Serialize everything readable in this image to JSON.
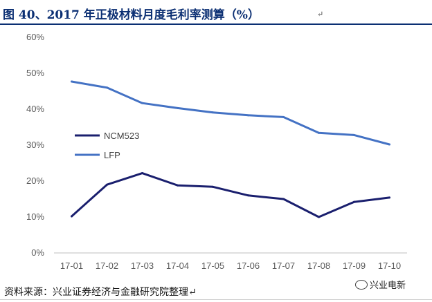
{
  "header": {
    "title": "图 40、2017 年正极材料月度毛利率测算（%）",
    "mark": "↵"
  },
  "footer": {
    "source": "资料来源：兴业证券经济与金融研究院整理↵",
    "watermark": "兴业电新"
  },
  "chart_data": {
    "type": "line",
    "title": "",
    "xlabel": "",
    "ylabel": "",
    "categories": [
      "17-01",
      "17-02",
      "17-03",
      "17-04",
      "17-05",
      "17-06",
      "17-07",
      "17-08",
      "17-09",
      "17-10"
    ],
    "ylim": [
      0,
      60
    ],
    "yticks": [
      "0%",
      "10%",
      "20%",
      "30%",
      "40%",
      "50%",
      "60%"
    ],
    "grid": false,
    "legend_position": "left-middle",
    "series": [
      {
        "name": "NCM523",
        "color": "#1a1f6e",
        "values": [
          10.2,
          19.0,
          22.2,
          18.8,
          18.4,
          16.0,
          15.0,
          10.0,
          14.2,
          15.4
        ]
      },
      {
        "name": "LFP",
        "color": "#4472c4",
        "values": [
          47.7,
          46.0,
          41.7,
          40.3,
          39.1,
          38.3,
          37.8,
          33.4,
          32.8,
          30.2
        ]
      }
    ]
  }
}
